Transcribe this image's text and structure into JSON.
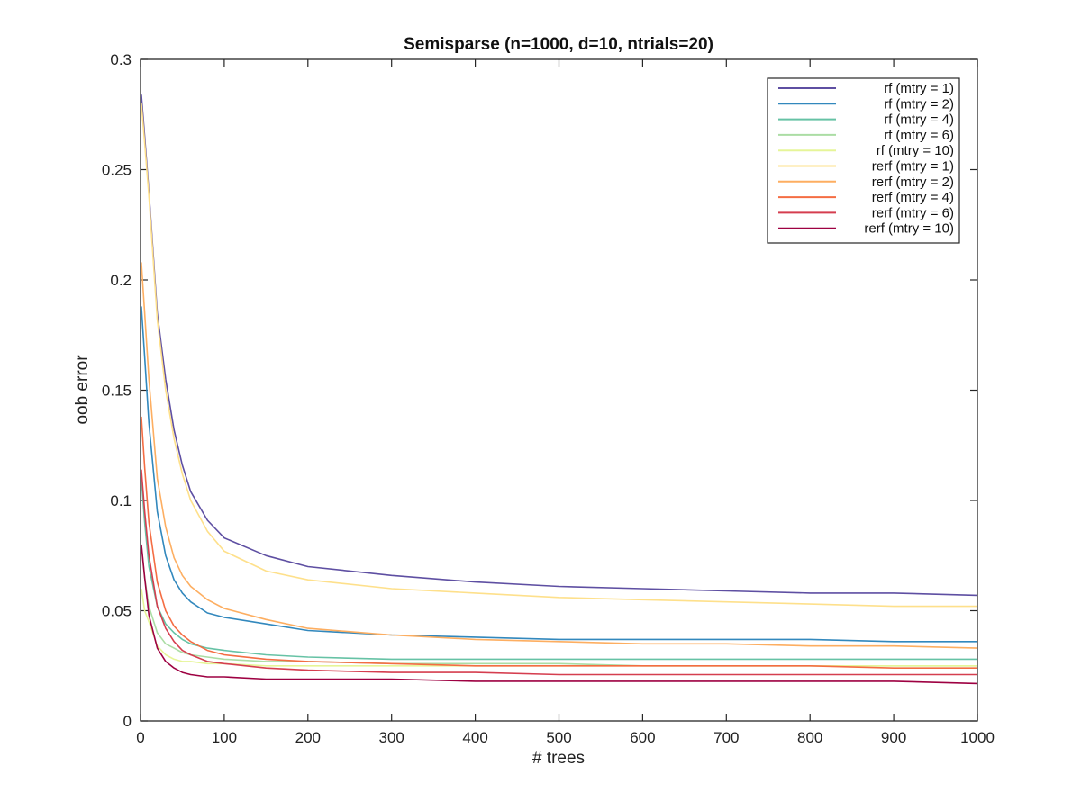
{
  "chart_data": {
    "type": "line",
    "title": "Semisparse (n=1000, d=10, ntrials=20)",
    "xlabel": "# trees",
    "ylabel": "oob error",
    "xlim": [
      0,
      1000
    ],
    "ylim": [
      0,
      0.3
    ],
    "xticks": [
      0,
      100,
      200,
      300,
      400,
      500,
      600,
      700,
      800,
      900,
      1000
    ],
    "yticks": [
      0,
      0.05,
      0.1,
      0.15,
      0.2,
      0.25,
      0.3
    ],
    "ytick_labels": [
      "0",
      "0.05",
      "0.1",
      "0.15",
      "0.2",
      "0.25",
      "0.3"
    ],
    "grid": false,
    "legend_position": "top-right",
    "x": [
      1,
      5,
      10,
      20,
      30,
      40,
      50,
      60,
      80,
      100,
      150,
      200,
      300,
      400,
      500,
      600,
      700,
      800,
      900,
      1000
    ],
    "series": [
      {
        "name": "rf (mtry = 1)",
        "color": "#5e4fa2",
        "values": [
          0.284,
          0.265,
          0.24,
          0.185,
          0.155,
          0.132,
          0.116,
          0.104,
          0.091,
          0.083,
          0.075,
          0.07,
          0.066,
          0.063,
          0.061,
          0.06,
          0.059,
          0.058,
          0.058,
          0.057
        ]
      },
      {
        "name": "rf (mtry = 2)",
        "color": "#3288bd",
        "values": [
          0.188,
          0.165,
          0.135,
          0.095,
          0.075,
          0.064,
          0.058,
          0.054,
          0.049,
          0.047,
          0.044,
          0.041,
          0.039,
          0.038,
          0.037,
          0.037,
          0.037,
          0.037,
          0.036,
          0.036
        ]
      },
      {
        "name": "rf (mtry = 4)",
        "color": "#66c2a5",
        "values": [
          0.11,
          0.09,
          0.07,
          0.052,
          0.044,
          0.04,
          0.037,
          0.035,
          0.033,
          0.032,
          0.03,
          0.029,
          0.028,
          0.028,
          0.028,
          0.028,
          0.028,
          0.028,
          0.028,
          0.028
        ]
      },
      {
        "name": "rf (mtry = 6)",
        "color": "#abdda4",
        "values": [
          0.08,
          0.065,
          0.052,
          0.04,
          0.035,
          0.033,
          0.031,
          0.03,
          0.029,
          0.028,
          0.027,
          0.027,
          0.026,
          0.026,
          0.026,
          0.025,
          0.025,
          0.025,
          0.025,
          0.025
        ]
      },
      {
        "name": "rf (mtry = 10)",
        "color": "#e6f598",
        "values": [
          0.06,
          0.05,
          0.045,
          0.034,
          0.03,
          0.028,
          0.027,
          0.027,
          0.026,
          0.026,
          0.025,
          0.025,
          0.025,
          0.025,
          0.025,
          0.025,
          0.025,
          0.025,
          0.025,
          0.025
        ]
      },
      {
        "name": "rerf (mtry = 1)",
        "color": "#fee08b",
        "values": [
          0.28,
          0.262,
          0.238,
          0.182,
          0.15,
          0.128,
          0.112,
          0.1,
          0.086,
          0.077,
          0.068,
          0.064,
          0.06,
          0.058,
          0.056,
          0.055,
          0.054,
          0.053,
          0.052,
          0.052
        ]
      },
      {
        "name": "rerf (mtry = 2)",
        "color": "#fdae61",
        "values": [
          0.208,
          0.185,
          0.155,
          0.11,
          0.088,
          0.074,
          0.066,
          0.061,
          0.055,
          0.051,
          0.046,
          0.042,
          0.039,
          0.037,
          0.036,
          0.035,
          0.035,
          0.034,
          0.034,
          0.033
        ]
      },
      {
        "name": "rerf (mtry = 4)",
        "color": "#f46d43",
        "values": [
          0.138,
          0.115,
          0.09,
          0.063,
          0.05,
          0.043,
          0.039,
          0.036,
          0.032,
          0.03,
          0.028,
          0.027,
          0.026,
          0.025,
          0.025,
          0.025,
          0.025,
          0.025,
          0.024,
          0.024
        ]
      },
      {
        "name": "rerf (mtry = 6)",
        "color": "#d53e4f",
        "values": [
          0.114,
          0.095,
          0.075,
          0.052,
          0.042,
          0.036,
          0.032,
          0.03,
          0.027,
          0.026,
          0.024,
          0.023,
          0.022,
          0.022,
          0.021,
          0.021,
          0.021,
          0.021,
          0.021,
          0.021
        ]
      },
      {
        "name": "rerf (mtry = 10)",
        "color": "#9e0142",
        "values": [
          0.08,
          0.065,
          0.048,
          0.033,
          0.027,
          0.024,
          0.022,
          0.021,
          0.02,
          0.02,
          0.019,
          0.019,
          0.019,
          0.018,
          0.018,
          0.018,
          0.018,
          0.018,
          0.018,
          0.017
        ]
      }
    ]
  }
}
